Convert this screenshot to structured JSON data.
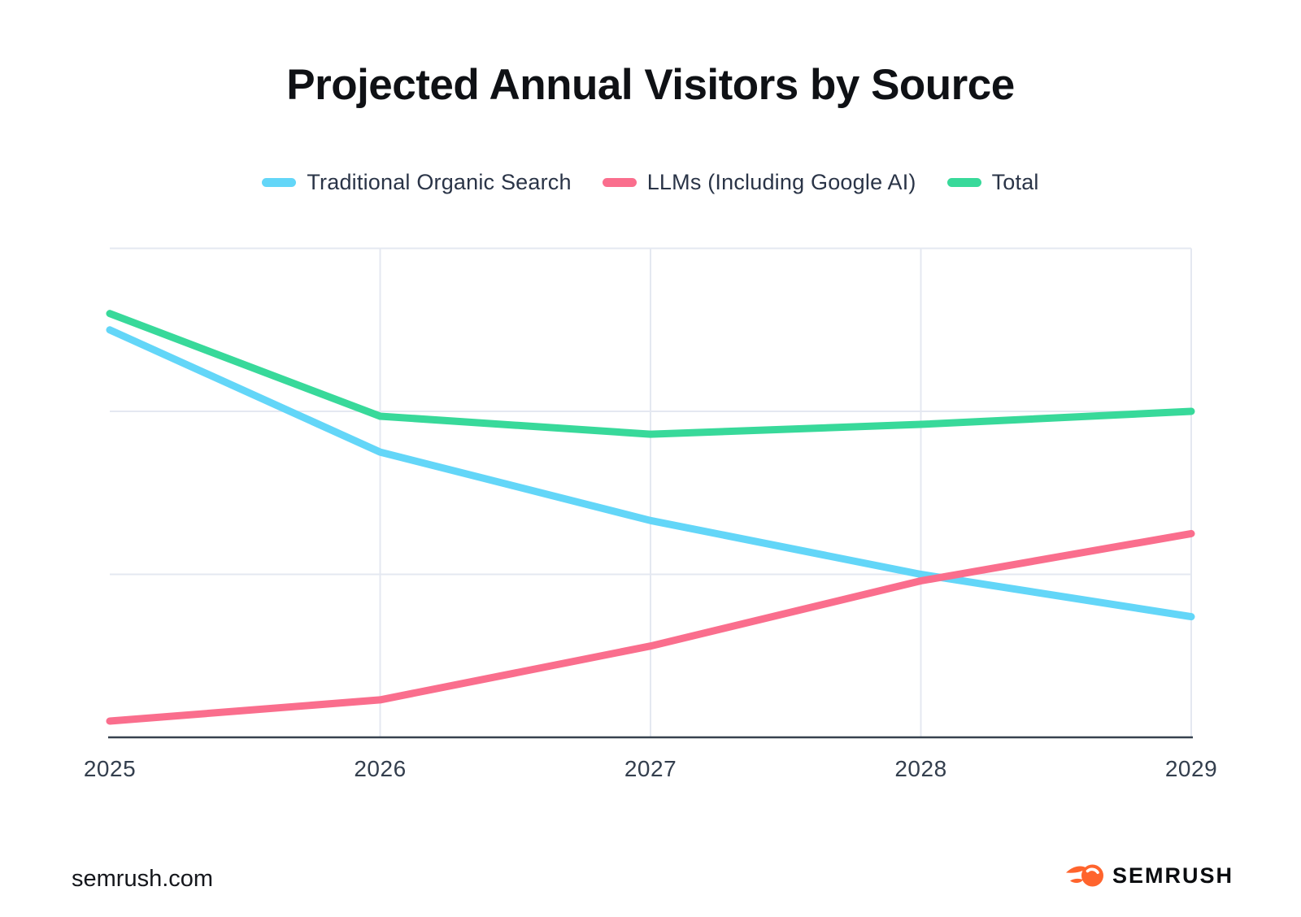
{
  "title": "Projected Annual Visitors by Source",
  "legend": {
    "items": [
      {
        "label": "Traditional Organic Search",
        "color": "#63D6F8"
      },
      {
        "label": "LLMs (Including Google AI)",
        "color": "#FA6E8D"
      },
      {
        "label": "Total",
        "color": "#38D99A"
      }
    ]
  },
  "chart_data": {
    "type": "line",
    "title": "Projected Annual Visitors by Source",
    "x_categories": [
      "2025",
      "2026",
      "2027",
      "2028",
      "2029"
    ],
    "series": [
      {
        "name": "Traditional Organic Search",
        "color": "#63D6F8",
        "values": [
          2.5,
          1.75,
          1.33,
          1.0,
          0.74
        ]
      },
      {
        "name": "LLMs (Including Google AI)",
        "color": "#FA6E8D",
        "values": [
          0.1,
          0.23,
          0.56,
          0.96,
          1.25
        ]
      },
      {
        "name": "Total",
        "color": "#38D99A",
        "values": [
          2.6,
          1.97,
          1.86,
          1.92,
          2.0
        ]
      }
    ],
    "y_axis": {
      "labels_visible": false,
      "unit": "relative units (1 gridline step = 1 unit; axis unlabeled)",
      "range": [
        0,
        3
      ],
      "gridlines": [
        1,
        2,
        3
      ]
    },
    "xlabel": "",
    "ylabel": "",
    "legend_position": "top",
    "grid": true
  },
  "footer": {
    "site_text": "semrush.com",
    "brand_text": "SEMRUSH",
    "brand_color": "#FF642D"
  }
}
